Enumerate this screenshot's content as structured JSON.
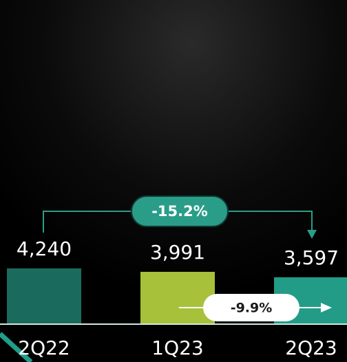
{
  "chart_data": {
    "type": "bar",
    "categories": [
      "2Q22",
      "1Q23",
      "2Q23"
    ],
    "values": [
      4240,
      3991,
      3597
    ],
    "value_labels": [
      "4,240",
      "3,991",
      "3,597"
    ],
    "colors": [
      "#1a6b5e",
      "#a7c13a",
      "#229c87"
    ],
    "ylim": [
      240,
      14240
    ],
    "annotations": [
      "-15.2%",
      "-9.9%"
    ]
  }
}
